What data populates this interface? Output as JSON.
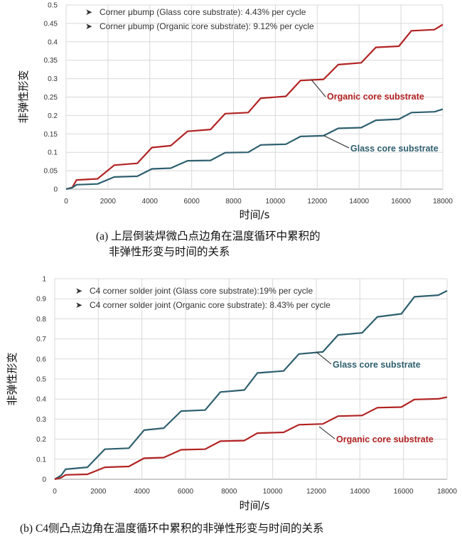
{
  "chart_data": [
    {
      "type": "line",
      "xlabel": "时间/s",
      "ylabel": "非弹性形变",
      "xlim": [
        0,
        18000
      ],
      "ylim": [
        0,
        0.5
      ],
      "xticks": [
        0,
        2000,
        4000,
        6000,
        8000,
        10000,
        12000,
        14000,
        16000,
        18000
      ],
      "yticks": [
        0,
        0.05,
        0.1,
        0.15,
        0.2,
        0.25,
        0.3,
        0.35,
        0.4,
        0.45,
        0.5
      ],
      "ytick_labels": [
        "0",
        "0.05",
        "0.1",
        "0.15",
        "0.2",
        "0.25",
        "0.3",
        "0.35",
        "0.4",
        "0.45",
        "0.5"
      ],
      "grid": true,
      "legend": [
        "Corner μbump (Glass core substrate): 4.43% per cycle",
        "Corner μbump (Organic core substrate): 9.12% per cycle"
      ],
      "legend_position": "top-left",
      "series": [
        {
          "name": "Organic core substrate",
          "color": "#b22222",
          "x": [
            0,
            300,
            500,
            1500,
            2300,
            3400,
            4100,
            5000,
            5800,
            6900,
            7600,
            8700,
            9300,
            10500,
            11200,
            12300,
            13000,
            14100,
            14800,
            15900,
            16500,
            17600,
            18000
          ],
          "y": [
            0,
            0.005,
            0.025,
            0.028,
            0.065,
            0.07,
            0.113,
            0.118,
            0.157,
            0.162,
            0.205,
            0.208,
            0.247,
            0.252,
            0.295,
            0.298,
            0.338,
            0.343,
            0.385,
            0.388,
            0.43,
            0.433,
            0.447
          ]
        },
        {
          "name": "Glass core substrate",
          "color": "#2e5f6e",
          "x": [
            0,
            300,
            500,
            1500,
            2300,
            3400,
            4100,
            5000,
            5800,
            6900,
            7600,
            8700,
            9300,
            10500,
            11200,
            12300,
            13000,
            14100,
            14800,
            15900,
            16500,
            17600,
            18000
          ],
          "y": [
            0,
            0.004,
            0.012,
            0.014,
            0.033,
            0.035,
            0.055,
            0.057,
            0.077,
            0.078,
            0.099,
            0.1,
            0.12,
            0.122,
            0.143,
            0.145,
            0.165,
            0.167,
            0.187,
            0.19,
            0.208,
            0.21,
            0.217
          ]
        }
      ],
      "annotations": [
        "Organic core substrate",
        "Glass core substrate"
      ]
    },
    {
      "type": "line",
      "xlabel": "时间/s",
      "ylabel": "非弹性形变",
      "xlim": [
        0,
        18000
      ],
      "ylim": [
        0,
        1
      ],
      "xticks": [
        0,
        2000,
        4000,
        6000,
        8000,
        10000,
        12000,
        14000,
        16000,
        18000
      ],
      "yticks": [
        0,
        0.1,
        0.2,
        0.3,
        0.4,
        0.5,
        0.6,
        0.7,
        0.8,
        0.9,
        1
      ],
      "ytick_labels": [
        "0",
        "0.1",
        "0.2",
        "0.3",
        "0.4",
        "0.5",
        "0.6",
        "0.7",
        "0.8",
        "0.9",
        "1"
      ],
      "grid": true,
      "legend": [
        "C4 corner solder joint (Glass core substrate):19% per cycle",
        "C4 corner solder joint (Organic core substrate): 8.43% per cycle"
      ],
      "legend_position": "top-left",
      "series": [
        {
          "name": "Glass core substrate",
          "color": "#2e5f6e",
          "x": [
            0,
            300,
            500,
            1500,
            2300,
            3400,
            4100,
            5000,
            5800,
            6900,
            7600,
            8700,
            9300,
            10500,
            11200,
            12300,
            13000,
            14100,
            14800,
            15900,
            16500,
            17600,
            18000
          ],
          "y": [
            0,
            0.02,
            0.05,
            0.06,
            0.15,
            0.155,
            0.245,
            0.255,
            0.34,
            0.345,
            0.435,
            0.445,
            0.53,
            0.54,
            0.625,
            0.635,
            0.72,
            0.73,
            0.81,
            0.825,
            0.91,
            0.918,
            0.94
          ]
        },
        {
          "name": "Organic core substrate",
          "color": "#b22222",
          "x": [
            0,
            300,
            500,
            1500,
            2300,
            3400,
            4100,
            5000,
            5800,
            6900,
            7600,
            8700,
            9300,
            10500,
            11200,
            12300,
            13000,
            14100,
            14800,
            15900,
            16500,
            17600,
            18000
          ],
          "y": [
            0,
            0.008,
            0.022,
            0.025,
            0.06,
            0.064,
            0.105,
            0.108,
            0.147,
            0.15,
            0.19,
            0.193,
            0.23,
            0.234,
            0.272,
            0.276,
            0.315,
            0.318,
            0.357,
            0.36,
            0.398,
            0.401,
            0.41
          ]
        }
      ],
      "annotations": [
        "Glass core substrate",
        "Organic core substrate"
      ]
    }
  ],
  "captions": {
    "a_line1": "(a) 上层倒装焊微凸点边角在温度循环中累积的",
    "a_line2": "非弹性形变与时间的关系",
    "b": "(b) C4侧凸点边角在温度循环中累积的非弹性形变与时间的关系"
  }
}
